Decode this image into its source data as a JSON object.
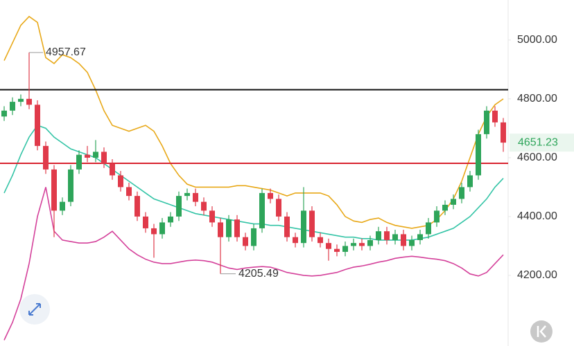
{
  "chart_data": {
    "type": "candlestick",
    "up_color": "#2ea55a",
    "down_color": "#e03a4a",
    "open": [
      4740,
      4760,
      4790,
      4800,
      4780,
      4640,
      4560,
      4420,
      4450,
      4560,
      4610,
      4600,
      4620,
      4580,
      4540,
      4500,
      4470,
      4400,
      4360,
      4340,
      4380,
      4400,
      4470,
      4480,
      4450,
      4420,
      4380,
      4330,
      4390,
      4330,
      4300,
      4360,
      4480,
      4460,
      4400,
      4330,
      4310,
      4420,
      4330,
      4310,
      4290,
      4280,
      4300,
      4310,
      4300,
      4320,
      4350,
      4320,
      4340,
      4300,
      4320,
      4340,
      4380,
      4420,
      4440,
      4460,
      4500,
      4540,
      4680,
      4760,
      4720
    ],
    "high": [
      4775,
      4805,
      4815,
      4957.67,
      4795,
      4655,
      4575,
      4465,
      4575,
      4625,
      4640,
      4660,
      4635,
      4595,
      4555,
      4515,
      4485,
      4415,
      4375,
      4395,
      4415,
      4485,
      4495,
      4495,
      4465,
      4435,
      4395,
      4405,
      4405,
      4345,
      4375,
      4495,
      4495,
      4475,
      4415,
      4345,
      4500,
      4435,
      4345,
      4325,
      4305,
      4315,
      4325,
      4325,
      4335,
      4365,
      4365,
      4355,
      4355,
      4335,
      4355,
      4395,
      4435,
      4455,
      4475,
      4515,
      4555,
      4695,
      4775,
      4775,
      4735
    ],
    "low": [
      4725,
      4745,
      4775,
      4765,
      4625,
      4545,
      4330,
      4405,
      4435,
      4545,
      4585,
      4585,
      4565,
      4525,
      4485,
      4455,
      4385,
      4345,
      4260,
      4325,
      4365,
      4385,
      4455,
      4435,
      4405,
      4365,
      4205.49,
      4315,
      4315,
      4285,
      4285,
      4345,
      4445,
      4385,
      4315,
      4295,
      4295,
      4315,
      4295,
      4250,
      4265,
      4265,
      4285,
      4285,
      4285,
      4305,
      4305,
      4305,
      4285,
      4285,
      4305,
      4325,
      4365,
      4405,
      4425,
      4445,
      4485,
      4525,
      4665,
      4705,
      4620
    ],
    "close": [
      4760,
      4790,
      4800,
      4780,
      4640,
      4560,
      4420,
      4450,
      4560,
      4610,
      4600,
      4620,
      4580,
      4540,
      4500,
      4470,
      4400,
      4360,
      4340,
      4380,
      4400,
      4470,
      4480,
      4450,
      4420,
      4380,
      4330,
      4390,
      4330,
      4300,
      4360,
      4480,
      4460,
      4400,
      4330,
      4310,
      4420,
      4330,
      4310,
      4290,
      4280,
      4300,
      4310,
      4300,
      4320,
      4350,
      4320,
      4340,
      4300,
      4320,
      4340,
      4380,
      4420,
      4440,
      4460,
      4500,
      4540,
      4680,
      4760,
      4720,
      4651.23
    ],
    "overlays": [
      {
        "color": "#e8a817",
        "values": [
          4930,
          4990,
          5050,
          5080,
          5060,
          4940,
          4920,
          4950,
          4940,
          4920,
          4890,
          4830,
          4760,
          4710,
          4700,
          4690,
          4700,
          4710,
          4690,
          4640,
          4580,
          4540,
          4510,
          4500,
          4500,
          4500,
          4500,
          4500,
          4505,
          4505,
          4500,
          4495,
          4490,
          4480,
          4470,
          4480,
          4480,
          4480,
          4480,
          4470,
          4440,
          4400,
          4385,
          4380,
          4390,
          4395,
          4380,
          4370,
          4365,
          4360,
          4365,
          4370,
          4390,
          4420,
          4460,
          4520,
          4600,
          4680,
          4740,
          4780,
          4800
        ]
      },
      {
        "color": "#33c4a6",
        "values": [
          4480,
          4540,
          4610,
          4670,
          4710,
          4700,
          4670,
          4650,
          4630,
          4620,
          4610,
          4600,
          4580,
          4560,
          4540,
          4520,
          4500,
          4480,
          4460,
          4450,
          4440,
          4430,
          4420,
          4410,
          4405,
          4400,
          4395,
          4390,
          4385,
          4380,
          4375,
          4375,
          4370,
          4370,
          4365,
          4360,
          4355,
          4350,
          4345,
          4340,
          4335,
          4330,
          4330,
          4325,
          4325,
          4320,
          4320,
          4320,
          4320,
          4320,
          4325,
          4330,
          4340,
          4350,
          4360,
          4380,
          4400,
          4430,
          4460,
          4500,
          4530
        ]
      },
      {
        "color": "#d4409a",
        "values": [
          3980,
          4040,
          4120,
          4240,
          4400,
          4500,
          4350,
          4320,
          4315,
          4310,
          4310,
          4315,
          4330,
          4350,
          4320,
          4290,
          4270,
          4255,
          4245,
          4240,
          4240,
          4245,
          4250,
          4252,
          4250,
          4245,
          4235,
          4225,
          4220,
          4225,
          4228,
          4230,
          4228,
          4220,
          4210,
          4205,
          4200,
          4198,
          4200,
          4205,
          4210,
          4220,
          4228,
          4232,
          4238,
          4245,
          4250,
          4258,
          4262,
          4265,
          4262,
          4258,
          4255,
          4250,
          4240,
          4225,
          4205,
          4198,
          4210,
          4240,
          4270
        ]
      }
    ],
    "hlines": [
      {
        "value": 4831,
        "color": "#111111"
      },
      {
        "value": 4581,
        "color": "#d8222e"
      }
    ],
    "ylim": [
      3960,
      5136
    ],
    "yticks": [
      {
        "value": 4200,
        "label": "4200.00"
      },
      {
        "value": 4400,
        "label": "4400.00"
      },
      {
        "value": 4600,
        "label": "4600.00"
      },
      {
        "value": 4800,
        "label": "4800.00"
      },
      {
        "value": 5000,
        "label": "5000.00"
      }
    ]
  }
}
